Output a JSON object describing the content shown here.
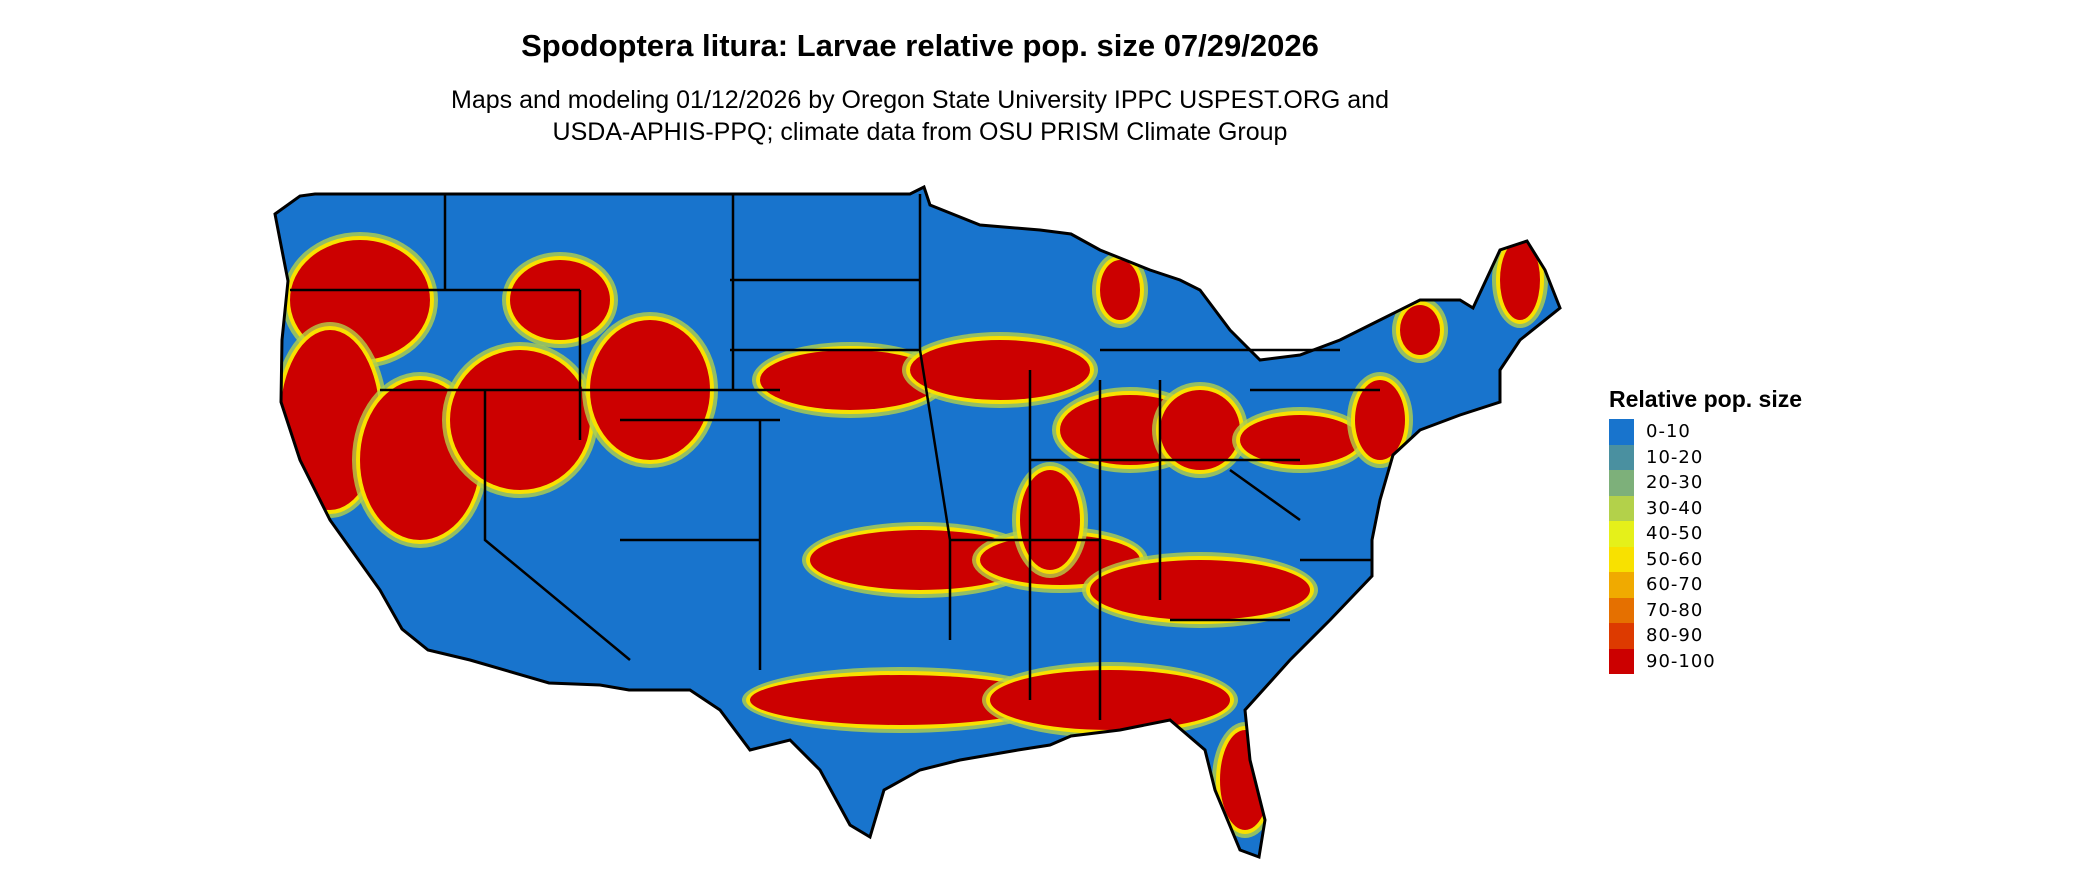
{
  "title": "Spodoptera litura: Larvae relative pop. size 07/29/2026",
  "subtitle_line1": "Maps and modeling 01/12/2026 by Oregon State University IPPC USPEST.ORG and",
  "subtitle_line2": "USDA-APHIS-PPQ; climate data from OSU PRISM Climate Group",
  "legend": {
    "title": "Relative pop. size",
    "items": [
      {
        "label": "0-10",
        "color": "#1874CD"
      },
      {
        "label": "10-20",
        "color": "#4A90A0"
      },
      {
        "label": "20-30",
        "color": "#7DB07A"
      },
      {
        "label": "30-40",
        "color": "#B3D14A"
      },
      {
        "label": "40-50",
        "color": "#E5F01A"
      },
      {
        "label": "50-60",
        "color": "#F8E100"
      },
      {
        "label": "60-70",
        "color": "#F0AA00"
      },
      {
        "label": "70-80",
        "color": "#E57000"
      },
      {
        "label": "80-90",
        "color": "#DD3A00"
      },
      {
        "label": "90-100",
        "color": "#CC0000"
      }
    ]
  }
}
